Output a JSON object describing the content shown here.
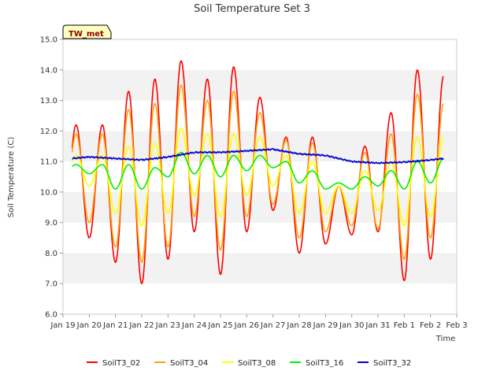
{
  "chart_data": {
    "type": "line",
    "title": "Soil Temperature Set 3",
    "xlabel": "Time",
    "ylabel": "Soil Temperature (C)",
    "badge": "TW_met",
    "ylim": [
      6.0,
      15.0
    ],
    "xlim": [
      0,
      15
    ],
    "yticks": [
      "6.0",
      "7.0",
      "8.0",
      "9.0",
      "10.0",
      "11.0",
      "12.0",
      "13.0",
      "14.0",
      "15.0"
    ],
    "xticks": [
      "Jan 19",
      "Jan 20",
      "Jan 21",
      "Jan 22",
      "Jan 23",
      "Jan 24",
      "Jan 25",
      "Jan 26",
      "Jan 27",
      "Jan 28",
      "Jan 29",
      "Jan 30",
      "Jan 31",
      "Feb 1",
      "Feb 2",
      "Feb 3"
    ],
    "grid": "horizontal bands",
    "legend_position": "bottom",
    "series": [
      {
        "name": "SoilT3_02",
        "color": "#ff0000",
        "max": [
          12.2,
          13.3,
          13.7,
          14.3,
          13.7,
          14.1,
          13.1,
          11.8,
          11.8,
          10.2,
          11.5,
          12.6,
          14.0,
          13.8
        ],
        "min": [
          8.5,
          7.7,
          7.0,
          7.8,
          8.7,
          7.3,
          8.7,
          9.4,
          8.0,
          8.3,
          8.6,
          8.7,
          7.1,
          7.8,
          8.4
        ]
      },
      {
        "name": "SoilT3_04",
        "color": "#ffa500",
        "max": [
          11.9,
          12.7,
          12.9,
          13.5,
          13.0,
          13.3,
          12.6,
          11.7,
          11.6,
          10.2,
          11.3,
          11.9,
          13.2,
          12.9
        ],
        "min": [
          9.0,
          8.2,
          7.7,
          8.2,
          9.2,
          8.1,
          9.2,
          9.6,
          8.5,
          8.7,
          8.9,
          8.8,
          7.8,
          8.5,
          9.2
        ]
      },
      {
        "name": "SoilT3_08",
        "color": "#ffff00",
        "max": [
          11.2,
          11.5,
          11.6,
          12.1,
          11.9,
          11.9,
          11.8,
          11.2,
          11.0,
          10.2,
          10.7,
          11.0,
          11.8,
          11.8
        ],
        "min": [
          10.2,
          9.3,
          8.9,
          9.3,
          9.9,
          9.2,
          9.9,
          10.2,
          9.3,
          9.3,
          9.3,
          9.4,
          8.9,
          9.2,
          10.4
        ]
      },
      {
        "name": "SoilT3_16",
        "color": "#00ee00",
        "max": [
          10.9,
          10.9,
          10.8,
          11.3,
          11.2,
          11.2,
          11.2,
          11.0,
          10.7,
          10.3,
          10.5,
          10.7,
          11.0,
          11.1
        ],
        "min": [
          10.6,
          10.1,
          10.1,
          10.5,
          10.6,
          10.5,
          10.7,
          10.8,
          10.3,
          10.1,
          10.1,
          10.2,
          10.1,
          10.3,
          11.0
        ]
      },
      {
        "name": "SoilT3_32",
        "color": "#0000cc",
        "points": [
          [
            0.35,
            11.1
          ],
          [
            1.0,
            11.15
          ],
          [
            2.0,
            11.1
          ],
          [
            3.0,
            11.05
          ],
          [
            4.0,
            11.15
          ],
          [
            5.0,
            11.3
          ],
          [
            6.0,
            11.3
          ],
          [
            7.0,
            11.35
          ],
          [
            8.0,
            11.4
          ],
          [
            9.0,
            11.25
          ],
          [
            10.0,
            11.2
          ],
          [
            11.0,
            11.0
          ],
          [
            12.0,
            10.95
          ],
          [
            13.0,
            10.98
          ],
          [
            14.0,
            11.05
          ],
          [
            14.5,
            11.1
          ]
        ]
      }
    ]
  }
}
